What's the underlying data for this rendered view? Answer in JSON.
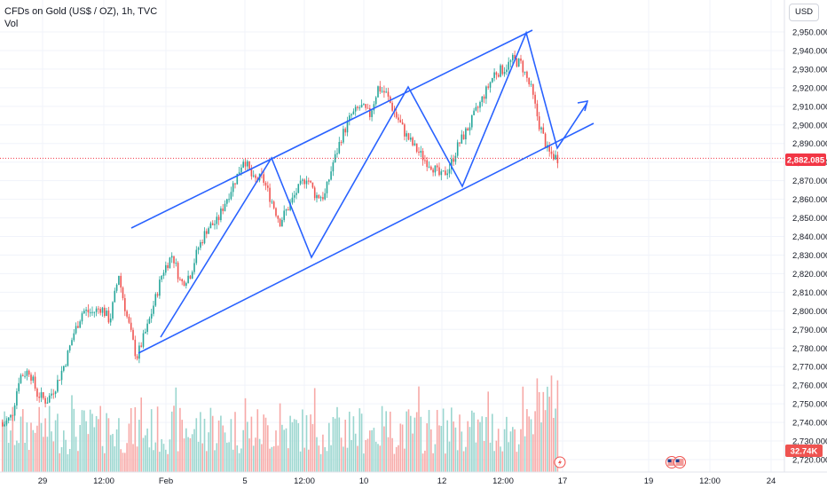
{
  "header": {
    "symbol": "CFDs on Gold (US$ / OZ), 1h, TVC",
    "indicator": "Vol"
  },
  "currency_button": "USD",
  "price_tag": "2,882.085",
  "volume_tag": "32.74K",
  "colors": {
    "up": "#26a69a",
    "down": "#ef5350",
    "up_vol": "#9ad6cf",
    "down_vol": "#f7a9a7",
    "drawing": "#2962ff",
    "price_line": "#f23645"
  },
  "icons": [
    "lightning-icon",
    "us-flag-icon",
    "us-flag-icon"
  ],
  "chart_data": {
    "type": "candlestick",
    "title": "CFDs on Gold (US$ / OZ), 1h, TVC",
    "y_axis": {
      "ticks": [
        "2,720.000",
        "2,730.000",
        "2,740.000",
        "2,750.000",
        "2,760.000",
        "2,770.000",
        "2,780.000",
        "2,790.000",
        "2,800.000",
        "2,810.000",
        "2,820.000",
        "2,830.000",
        "2,840.000",
        "2,850.000",
        "2,860.000",
        "2,870.000",
        "2,880.000",
        "2,890.000",
        "2,900.000",
        "2,910.000",
        "2,920.000",
        "2,930.000",
        "2,940.000",
        "2,950.000"
      ],
      "range": [
        2718,
        2958
      ]
    },
    "x_axis": {
      "ticks": [
        "29",
        "12:00",
        "Feb",
        "5",
        "12:00",
        "10",
        "12",
        "12:00",
        "17",
        "19",
        "12:00",
        "24"
      ]
    },
    "last_price": 2882.085,
    "last_volume": "32.74K",
    "price_path": [
      [
        2740,
        2738
      ],
      [
        2745,
        2742
      ],
      [
        2755,
        2765
      ],
      [
        2765,
        2768
      ],
      [
        2760,
        2755
      ],
      [
        2750,
        2752
      ],
      [
        2752,
        2760
      ],
      [
        2762,
        2772
      ],
      [
        2775,
        2788
      ],
      [
        2790,
        2800
      ],
      [
        2800,
        2799
      ],
      [
        2798,
        2802
      ],
      [
        2800,
        2795
      ],
      [
        2805,
        2818
      ],
      [
        2815,
        2795
      ],
      [
        2790,
        2775
      ],
      [
        2780,
        2788
      ],
      [
        2790,
        2805
      ],
      [
        2810,
        2822
      ],
      [
        2825,
        2830
      ],
      [
        2822,
        2815
      ],
      [
        2815,
        2820
      ],
      [
        2825,
        2835
      ],
      [
        2840,
        2845
      ],
      [
        2845,
        2848
      ],
      [
        2850,
        2860
      ],
      [
        2862,
        2870
      ],
      [
        2875,
        2882
      ],
      [
        2882,
        2870
      ],
      [
        2868,
        2872
      ],
      [
        2870,
        2860
      ],
      [
        2858,
        2848
      ],
      [
        2850,
        2856
      ],
      [
        2860,
        2865
      ],
      [
        2868,
        2872
      ],
      [
        2870,
        2862
      ],
      [
        2860,
        2862
      ],
      [
        2868,
        2880
      ],
      [
        2885,
        2895
      ],
      [
        2898,
        2905
      ],
      [
        2905,
        2910
      ],
      [
        2912,
        2905
      ],
      [
        2910,
        2920
      ],
      [
        2925,
        2915
      ],
      [
        2912,
        2905
      ],
      [
        2905,
        2895
      ],
      [
        2895,
        2888
      ],
      [
        2890,
        2882
      ],
      [
        2882,
        2878
      ],
      [
        2875,
        2872
      ],
      [
        2870,
        2878
      ],
      [
        2880,
        2890
      ],
      [
        2892,
        2898
      ],
      [
        2900,
        2908
      ],
      [
        2910,
        2918
      ],
      [
        2920,
        2928
      ],
      [
        2928,
        2930
      ],
      [
        2930,
        2935
      ],
      [
        2938,
        2932
      ],
      [
        2930,
        2920
      ],
      [
        2915,
        2900
      ],
      [
        2895,
        2885
      ],
      [
        2885,
        2882
      ]
    ],
    "annotations": [
      {
        "type": "trend_channel",
        "lines": [
          {
            "from": [
              "Jan 30",
              2845
            ],
            "to": [
              "Feb 14",
              2952
            ]
          },
          {
            "from": [
              "Jan 31",
              2778
            ],
            "to": [
              "Feb 17",
              2900
            ]
          }
        ]
      },
      {
        "type": "zigzag",
        "points": [
          [
            "Jan 31",
            2778
          ],
          [
            "Feb 6",
            2882
          ],
          [
            "Feb 7",
            2830
          ],
          [
            "Feb 10",
            2920
          ],
          [
            "Feb 12",
            2865
          ],
          [
            "Feb 14",
            2950
          ],
          [
            "Feb 14",
            2885
          ],
          [
            "Feb 17",
            2913
          ]
        ]
      }
    ]
  }
}
